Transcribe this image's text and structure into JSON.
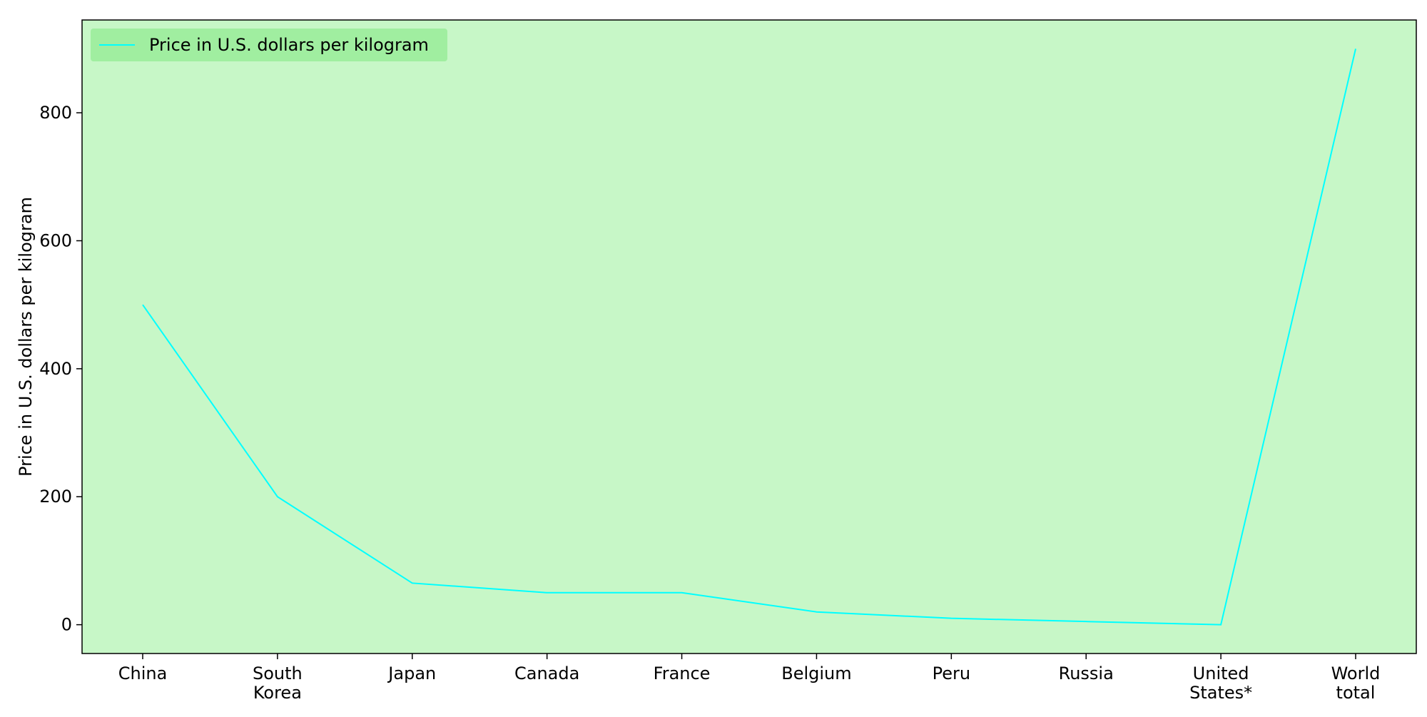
{
  "chart_data": {
    "type": "line",
    "categories": [
      [
        "China"
      ],
      [
        "South",
        "Korea"
      ],
      [
        "Japan"
      ],
      [
        "Canada"
      ],
      [
        "France"
      ],
      [
        "Belgium"
      ],
      [
        "Peru"
      ],
      [
        "Russia"
      ],
      [
        "United",
        "States*"
      ],
      [
        "World",
        "total"
      ]
    ],
    "series": [
      {
        "name": "Price in U.S. dollars per kilogram",
        "values": [
          500,
          200,
          65,
          50,
          50,
          20,
          10,
          5,
          0,
          900
        ]
      }
    ],
    "xlabel": "",
    "ylabel": "Price in U.S. dollars per kilogram",
    "ylim": [
      -45,
      945
    ],
    "yticks": [
      "0",
      "200",
      "400",
      "600",
      "800"
    ],
    "legend_position": "top-left",
    "grid": false
  },
  "colors": {
    "plot_background": "#c7f7c7",
    "legend_background": "#a0eea0",
    "line": "#00ffff",
    "axis": "#000000"
  }
}
